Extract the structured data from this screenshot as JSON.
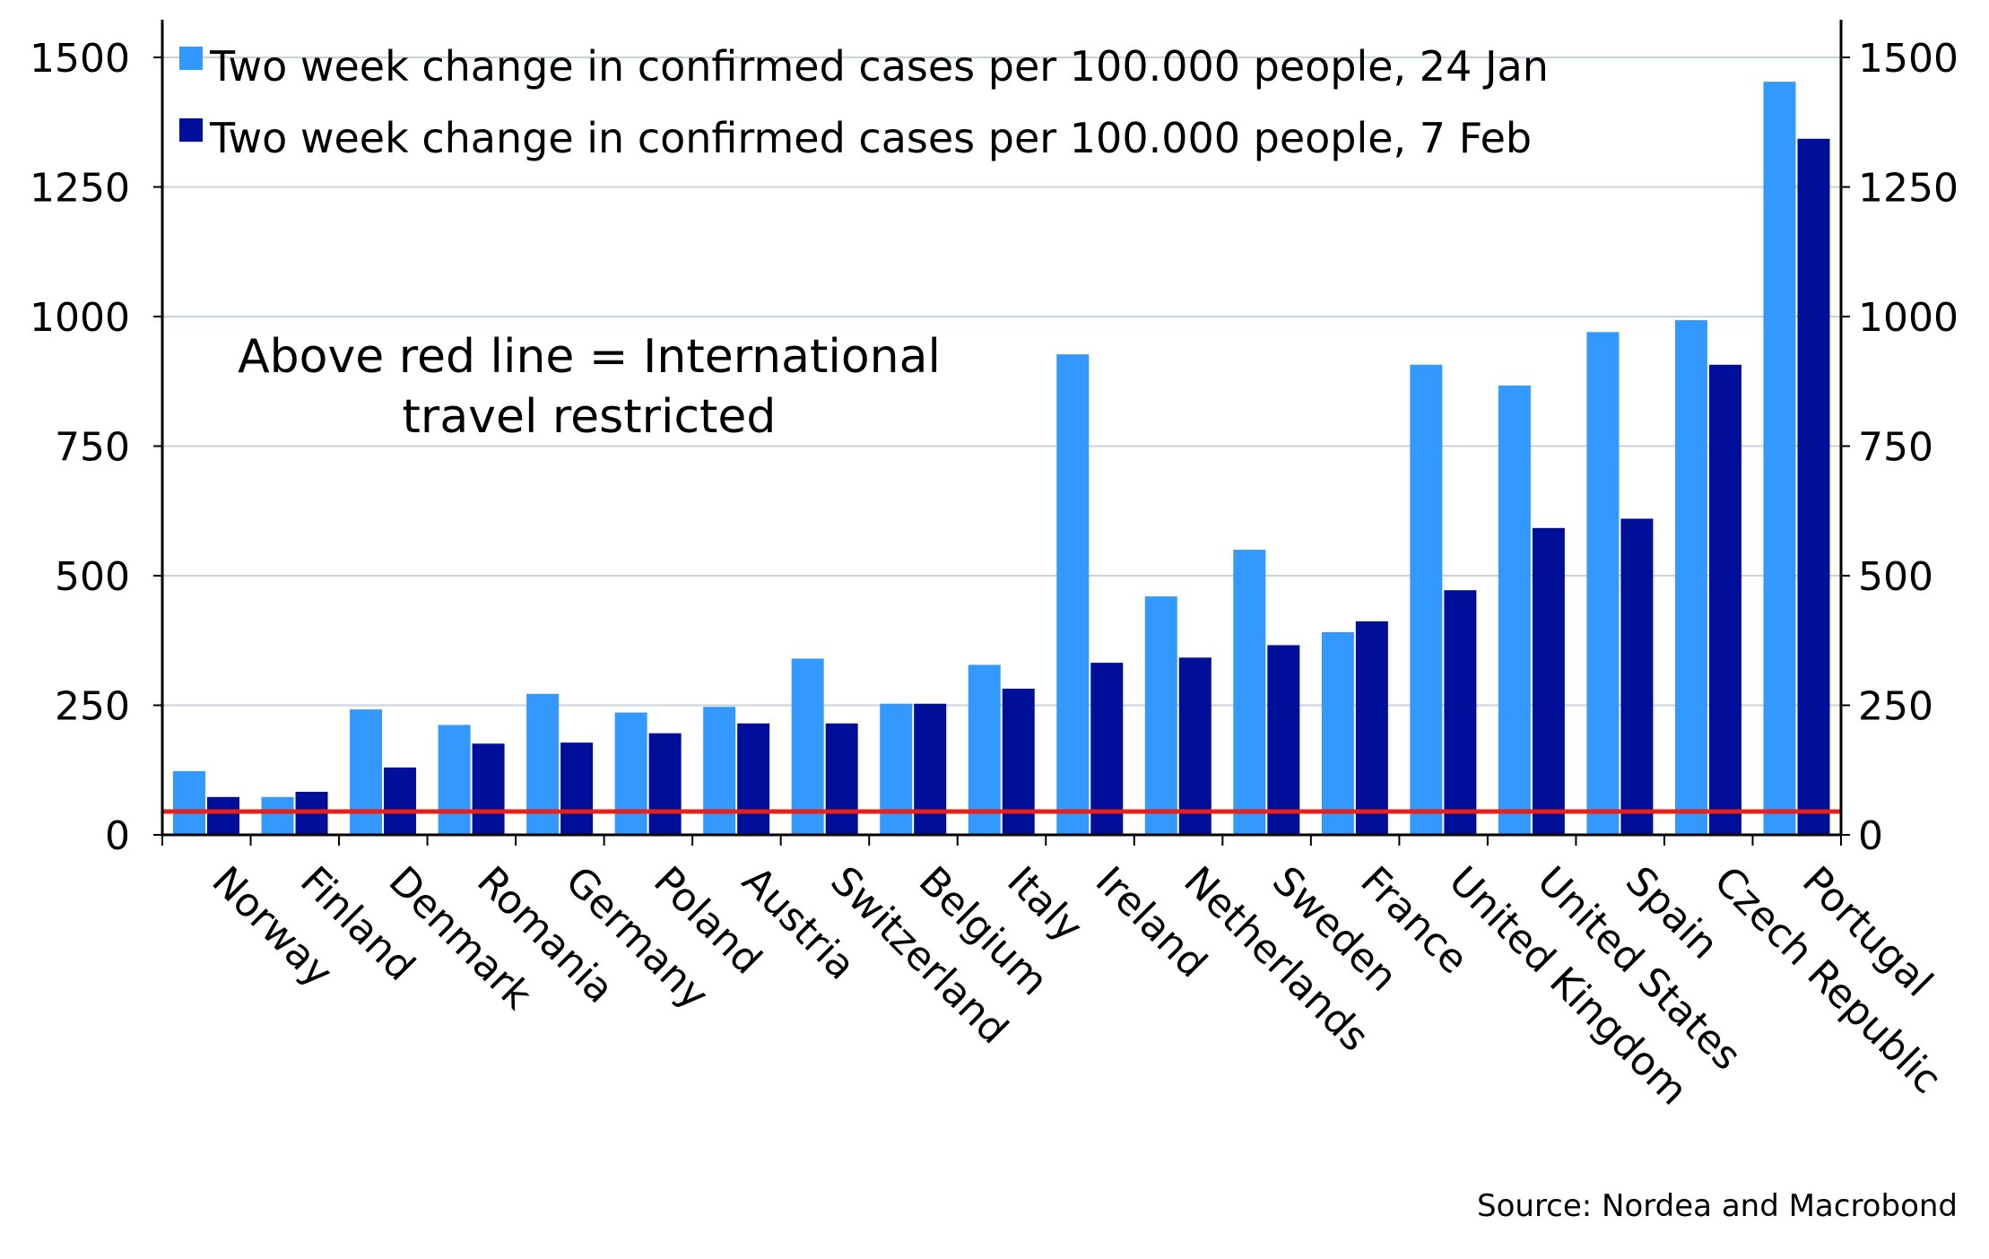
{
  "chart_data": {
    "type": "bar",
    "categories": [
      "Norway",
      "Finland",
      "Denmark",
      "Romania",
      "Germany",
      "Poland",
      "Austria",
      "Switzerland",
      "Belgium",
      "Italy",
      "Ireland",
      "Netherlands",
      "Sweden",
      "France",
      "United Kingdom",
      "United States",
      "Spain",
      "Czech Republic",
      "Portugal"
    ],
    "series": [
      {
        "name": "Two week change in confirmed cases per 100.000 people, 24 Jan",
        "color": "#3399ff",
        "values": [
          123,
          73,
          242,
          212,
          272,
          236,
          247,
          340,
          253,
          328,
          927,
          460,
          550,
          391,
          907,
          867,
          970,
          993,
          1453
        ]
      },
      {
        "name": "Two week change in confirmed cases per 100.000 people, 7 Feb",
        "color": "#000f99",
        "values": [
          73,
          83,
          130,
          176,
          178,
          196,
          215,
          215,
          253,
          282,
          332,
          342,
          366,
          412,
          472,
          592,
          610,
          907,
          1343
        ]
      }
    ],
    "threshold": {
      "value": 45,
      "color": "#e8201a"
    },
    "ylim": [
      0,
      1550
    ],
    "yticks": [
      0,
      250,
      500,
      750,
      1000,
      1250,
      1500
    ],
    "grid": true,
    "legend_position": "top-left",
    "annotation": [
      "Above red line = International",
      "travel restricted"
    ],
    "source": "Source: Nordea and Macrobond",
    "xlabel": "",
    "ylabel": ""
  }
}
